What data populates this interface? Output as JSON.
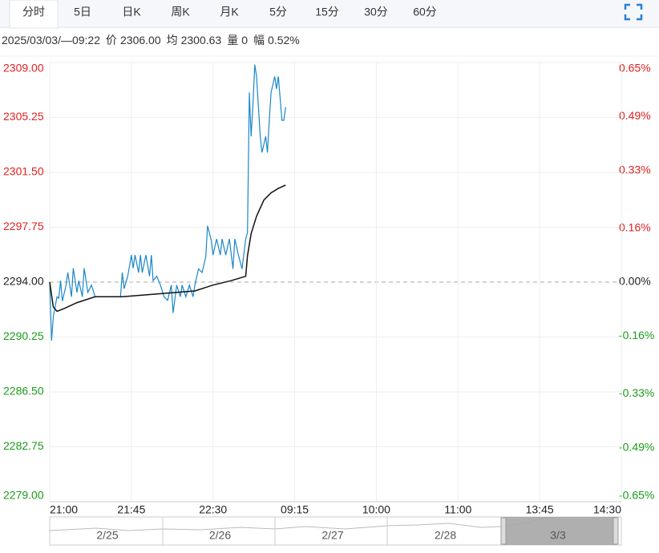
{
  "header": {
    "tabs": [
      "分时",
      "5日",
      "日K",
      "周K",
      "月K",
      "5分",
      "15分",
      "30分",
      "60分"
    ],
    "active_tab": "分时"
  },
  "info": {
    "datetime": "2025/03/03/—09:22",
    "price_label": "价",
    "price": "2306.00",
    "avg_label": "均",
    "avg": "2300.63",
    "volume_label": "量",
    "volume": "0",
    "range_label": "幅",
    "range": "0.52%"
  },
  "chart_data": {
    "type": "line",
    "xlim": [
      0,
      315
    ],
    "xticks": [
      {
        "value": 0,
        "label": "21:00"
      },
      {
        "value": 45,
        "label": "21:45"
      },
      {
        "value": 90,
        "label": "22:30"
      },
      {
        "value": 135,
        "label": "09:15"
      },
      {
        "value": 180,
        "label": "10:00"
      },
      {
        "value": 225,
        "label": "11:00"
      },
      {
        "value": 270,
        "label": "13:45"
      },
      {
        "value": 315,
        "label": "14:30"
      }
    ],
    "ylim": [
      2279,
      2309
    ],
    "yticks": [
      {
        "value": 2309,
        "label": "2309.00"
      },
      {
        "value": 2305.25,
        "label": "2305.25"
      },
      {
        "value": 2301.5,
        "label": "2301.50"
      },
      {
        "value": 2297.75,
        "label": "2297.75"
      },
      {
        "value": 2294,
        "label": "2294.00"
      },
      {
        "value": 2290.25,
        "label": "2290.25"
      },
      {
        "value": 2286.5,
        "label": "2286.50"
      },
      {
        "value": 2282.75,
        "label": "2282.75"
      },
      {
        "value": 2279,
        "label": "2279.00"
      }
    ],
    "y2lim": [
      -0.65,
      0.65
    ],
    "y2ticks": [
      {
        "value": 0.65,
        "label": "0.65%"
      },
      {
        "value": 0.49,
        "label": "0.49%"
      },
      {
        "value": 0.33,
        "label": "0.33%"
      },
      {
        "value": 0.16,
        "label": "0.16%"
      },
      {
        "value": 0,
        "label": "0.00%"
      },
      {
        "value": -0.16,
        "label": "-0.16%"
      },
      {
        "value": -0.33,
        "label": "-0.33%"
      },
      {
        "value": -0.49,
        "label": "-0.49%"
      },
      {
        "value": -0.65,
        "label": "-0.65%"
      }
    ],
    "grid": true,
    "up_color": "#e02020",
    "down_color": "#1a9c1a",
    "flat_color": "#222222",
    "series": [
      {
        "color": "#1b87c9",
        "x": [
          0,
          1,
          2,
          4,
          5,
          6,
          7,
          9,
          10,
          12,
          13,
          15,
          16,
          18,
          19,
          21,
          23,
          25,
          39,
          40,
          41,
          43,
          45,
          46,
          47,
          49,
          50,
          51,
          53,
          55,
          56,
          57,
          59,
          61,
          63,
          65,
          67,
          68,
          70,
          72,
          73,
          75,
          77,
          79,
          80,
          82,
          84,
          86,
          87,
          89,
          90,
          92,
          94,
          95,
          97,
          99,
          101,
          102,
          104,
          106,
          108,
          109,
          110,
          111,
          112,
          113,
          114,
          116,
          117,
          119,
          120,
          121,
          122,
          124,
          125,
          126,
          128,
          129,
          130
        ],
        "values": [
          2294.0,
          2290.0,
          2291.65,
          2293.0,
          2292.9,
          2294.1,
          2292.7,
          2293.8,
          2294.65,
          2293.0,
          2294.95,
          2293.3,
          2294.1,
          2293.0,
          2294.95,
          2293.3,
          2293.8,
          2293.0,
          2293.0,
          2294.65,
          2293.55,
          2294.4,
          2295.85,
          2294.95,
          2295.85,
          2294.65,
          2295.85,
          2294.65,
          2295.85,
          2294.4,
          2295.85,
          2294.1,
          2294.4,
          2293.8,
          2293.0,
          2292.75,
          2293.8,
          2291.9,
          2293.8,
          2293.0,
          2293.8,
          2293.0,
          2293.8,
          2293.0,
          2293.8,
          2294.9,
          2294.65,
          2295.75,
          2297.85,
          2296.85,
          2295.85,
          2296.95,
          2295.85,
          2296.95,
          2295.85,
          2296.95,
          2294.9,
          2296.95,
          2295.85,
          2294.9,
          2296.95,
          2297.4,
          2306.95,
          2303.95,
          2306.1,
          2308.85,
          2308.05,
          2303.95,
          2302.85,
          2303.95,
          2302.85,
          2305.05,
          2306.95,
          2308.05,
          2307.2,
          2308.05,
          2305.05,
          2305.05,
          2305.95
        ]
      },
      {
        "color": "#111111",
        "x": [
          0,
          2,
          4,
          8,
          15,
          25,
          40,
          60,
          80,
          90,
          100,
          108,
          109,
          111,
          114,
          118,
          122,
          126,
          130
        ],
        "values": [
          2294.0,
          2292.3,
          2292.0,
          2292.2,
          2292.6,
          2293.0,
          2293.0,
          2293.2,
          2293.4,
          2293.8,
          2294.1,
          2294.4,
          2295.8,
          2297.3,
          2298.5,
          2299.6,
          2300.1,
          2300.4,
          2300.63
        ]
      }
    ]
  },
  "navigator": {
    "labels": [
      "2/25",
      "2/26",
      "2/27",
      "2/28",
      "3/3"
    ]
  }
}
